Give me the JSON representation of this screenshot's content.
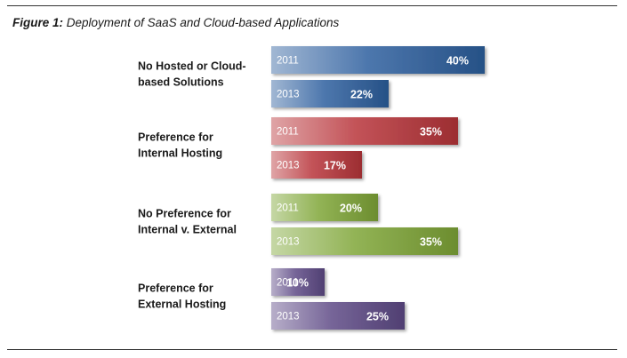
{
  "figure": {
    "number": "Figure 1:",
    "title": "Deployment of SaaS and Cloud-based Applications"
  },
  "chart_data": {
    "type": "bar",
    "orientation": "horizontal",
    "title": "Deployment of SaaS and Cloud-based Applications",
    "categories": [
      [
        "No Hosted or Cloud-",
        "based Solutions"
      ],
      [
        "Preference for",
        "Internal Hosting"
      ],
      [
        "No Preference for",
        "Internal v. External"
      ],
      [
        "Preference for",
        "External Hosting"
      ]
    ],
    "series": [
      {
        "name": "2011",
        "values": [
          40,
          35,
          20,
          10
        ],
        "labels": [
          "40%",
          "35%",
          "20%",
          "10%"
        ]
      },
      {
        "name": "2013",
        "values": [
          22,
          17,
          35,
          25
        ],
        "labels": [
          "22%",
          "17%",
          "35%",
          "25%"
        ]
      }
    ],
    "category_colors": [
      "#2d5f9e",
      "#b8353a",
      "#7fa637",
      "#5e4a86"
    ],
    "xlim": [
      0,
      40
    ],
    "grid": false,
    "legend": "none"
  }
}
